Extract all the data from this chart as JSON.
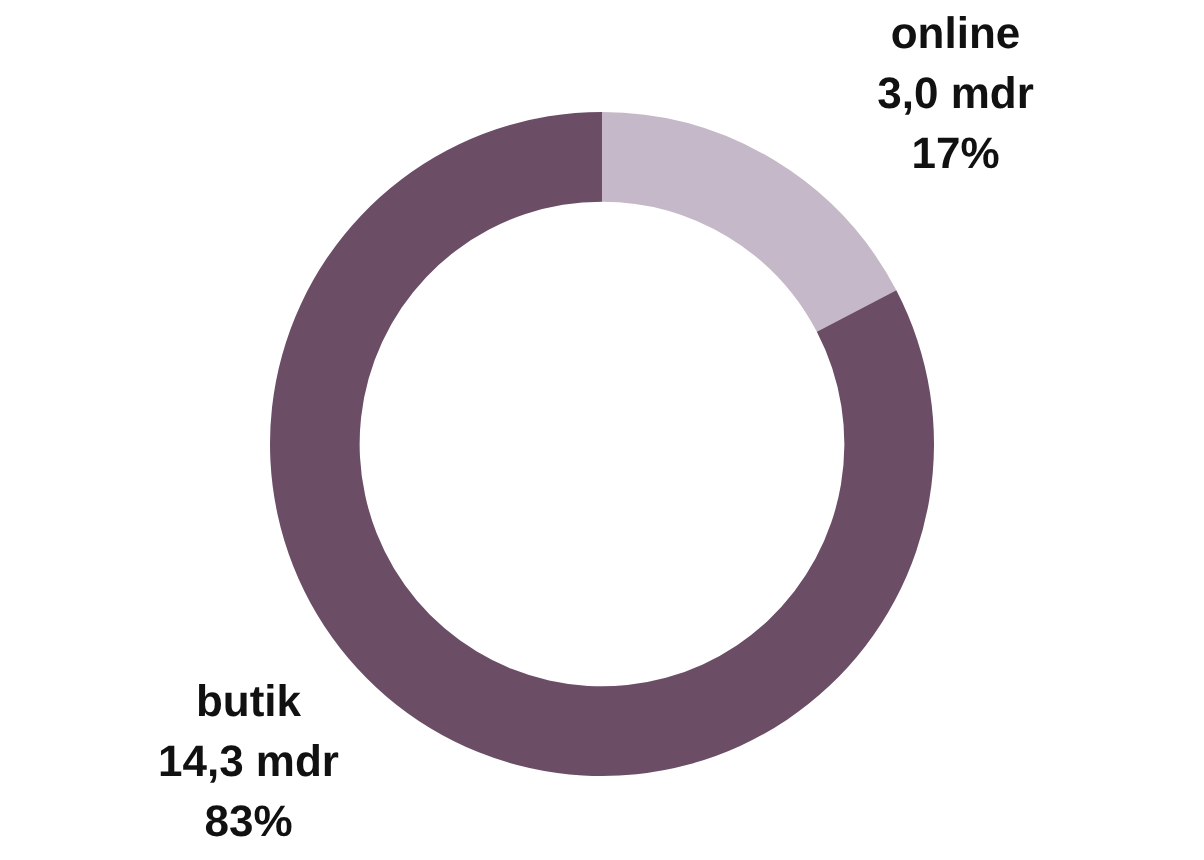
{
  "chart_data": {
    "type": "donut",
    "categories": [
      "online",
      "butik"
    ],
    "values": [
      3.0,
      14.3
    ],
    "colors": [
      "#c5b8c9",
      "#6b4d66"
    ],
    "value_labels": [
      "3,0 mdr\n17%",
      "14,3 mdr\n83%"
    ]
  }
}
